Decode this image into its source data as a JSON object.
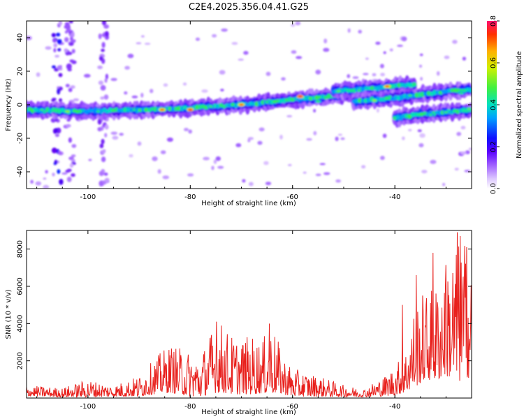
{
  "title": "C2E4.2025.356.04.41.G25",
  "chart_data": [
    {
      "type": "heatmap",
      "name": "spectrogram",
      "xlabel": "Height of straight line (km)",
      "ylabel": "Frequency (Hz)",
      "xlim": [
        -112,
        -25
      ],
      "ylim": [
        -50,
        50
      ],
      "xticks": [
        -100,
        -80,
        -60,
        -40
      ],
      "yticks": [
        -40,
        -20,
        0,
        20,
        40
      ],
      "colorbar": {
        "label": "Normalized spectral amplitude",
        "range": [
          0.0,
          0.8
        ],
        "ticks": [
          "0.0",
          "0.2",
          "0.4",
          "0.6",
          "0.8"
        ]
      },
      "tracks": [
        {
          "name": "main-track",
          "x": [
            -112,
            -100,
            -90,
            -80,
            -70,
            -60,
            -52,
            -45
          ],
          "freq": [
            -3,
            -4,
            -3,
            -2,
            0,
            3,
            5,
            7
          ]
        },
        {
          "name": "upper-branch",
          "x": [
            -52,
            -48,
            -44,
            -40,
            -36
          ],
          "freq": [
            8,
            9,
            10,
            11,
            12
          ]
        },
        {
          "name": "middle-branch",
          "x": [
            -48,
            -44,
            -40,
            -35,
            -30,
            -25
          ],
          "freq": [
            2,
            3,
            4,
            6,
            8,
            9
          ]
        },
        {
          "name": "lower-branch",
          "x": [
            -40,
            -36,
            -32,
            -28,
            -25
          ],
          "freq": [
            -8,
            -6,
            -5,
            -4,
            -3
          ]
        }
      ]
    },
    {
      "type": "line",
      "name": "snr",
      "xlabel": "Height of straight line (km)",
      "ylabel": "SNR (10 * v/v)",
      "xlim": [
        -112,
        -25
      ],
      "ylim": [
        0,
        9000
      ],
      "xticks": [
        -100,
        -80,
        -60,
        -40
      ],
      "yticks": [
        2000,
        4000,
        6000,
        8000
      ],
      "color": "#e8201c",
      "envelope": {
        "x": [
          -112,
          -105,
          -100,
          -95,
          -90,
          -86,
          -84,
          -80,
          -78,
          -76,
          -74,
          -72,
          -70,
          -68,
          -66,
          -64,
          -62,
          -60,
          -55,
          -50,
          -46,
          -44,
          -42,
          -40,
          -38,
          -36,
          -34,
          -32,
          -30,
          -28,
          -26,
          -25
        ],
        "base": [
          100,
          50,
          50,
          80,
          80,
          250,
          300,
          80,
          60,
          250,
          300,
          200,
          200,
          200,
          250,
          250,
          200,
          80,
          80,
          60,
          60,
          80,
          100,
          150,
          300,
          600,
          1000,
          900,
          1200,
          800,
          1000,
          1200
        ],
        "peak": [
          700,
          550,
          1000,
          700,
          1200,
          2400,
          2900,
          2500,
          2300,
          3600,
          4100,
          3400,
          3200,
          3400,
          3100,
          4000,
          2400,
          1600,
          1200,
          700,
          500,
          900,
          1200,
          1800,
          2500,
          5200,
          5800,
          6100,
          7600,
          8300,
          8700,
          6500
        ]
      },
      "highlights": [
        [
          -74.9,
          4100
        ],
        [
          -64.5,
          4000
        ],
        [
          -38.5,
          5000
        ],
        [
          -35.8,
          6600
        ],
        [
          -32.5,
          7800
        ],
        [
          -30.1,
          6000
        ],
        [
          -27.8,
          8900
        ],
        [
          -27.2,
          8700
        ],
        [
          -26,
          8100
        ]
      ]
    }
  ]
}
